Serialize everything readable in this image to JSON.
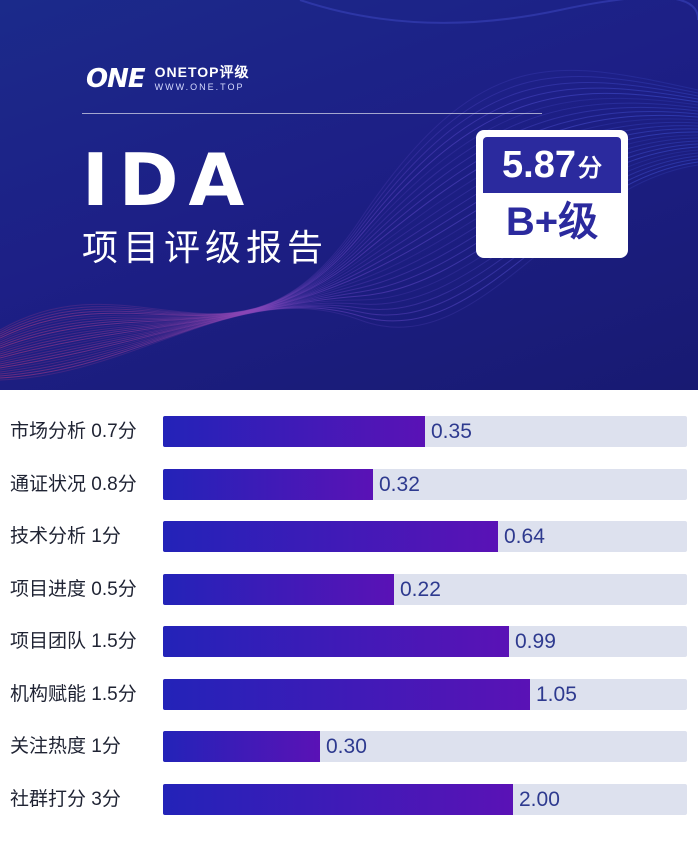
{
  "brand": {
    "logo_mark": "ONE",
    "name": "ONETOP评级",
    "url": "WWW.ONE.TOP"
  },
  "header": {
    "title": "IDA",
    "subtitle": "项目评级报告"
  },
  "score": {
    "value": "5.87",
    "unit": "分",
    "grade": "B+级"
  },
  "colors": {
    "banner": "#1d1f86",
    "bar_start": "#2323b8",
    "bar_end": "#5a12b6",
    "track": "#dde1ee",
    "value_text": "#2e3a8f"
  },
  "chart_data": {
    "type": "bar",
    "orientation": "horizontal",
    "categories": [
      "市场分析 0.7分",
      "通证状况 0.8分",
      "技术分析 1分",
      "项目进度 0.5分",
      "项目团队 1.5分",
      "机构赋能 1.5分",
      "关注热度 1分",
      "社群打分 3分"
    ],
    "values": [
      0.35,
      0.32,
      0.64,
      0.22,
      0.99,
      1.05,
      0.3,
      2.0
    ],
    "value_labels": [
      "0.35",
      "0.32",
      "0.64",
      "0.22",
      "0.99",
      "1.05",
      "0.30",
      "2.00"
    ],
    "fill_ratios": [
      0.5,
      0.4,
      0.64,
      0.44,
      0.66,
      0.7,
      0.3,
      0.667
    ]
  }
}
